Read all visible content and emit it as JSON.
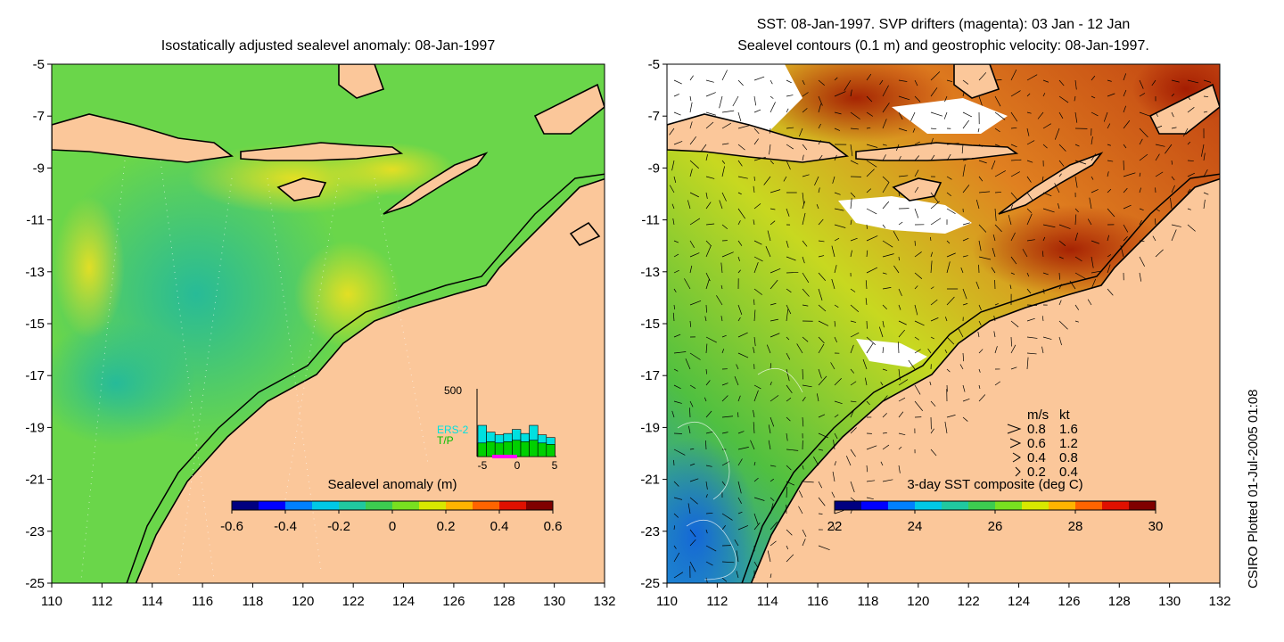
{
  "left_map": {
    "title": "Isostatically adjusted sealevel anomaly: 08-Jan-1997",
    "colorbar": {
      "label": "Sealevel anomaly (m)",
      "ticks": [
        "-0.6",
        "-0.4",
        "-0.2",
        "0",
        "0.2",
        "0.4",
        "0.6"
      ],
      "range": [
        -0.6,
        0.6
      ],
      "colors": [
        "#000080",
        "#0000ff",
        "#0080ff",
        "#00c8e6",
        "#20c8a0",
        "#3ccc50",
        "#78e020",
        "#d8e800",
        "#ffb400",
        "#ff6400",
        "#e01000",
        "#800000"
      ]
    },
    "inset": {
      "ymax_label": "500",
      "series": [
        {
          "name": "ERS-2",
          "color": "#00e0e0"
        },
        {
          "name": "T/P",
          "color": "#00d000"
        }
      ],
      "xticks": [
        "-5",
        "0",
        "5"
      ],
      "ers2_counts": [
        230,
        180,
        160,
        170,
        200,
        170,
        230,
        160,
        140
      ],
      "tp_counts": [
        100,
        110,
        100,
        110,
        120,
        110,
        120,
        100,
        90
      ]
    }
  },
  "right_map": {
    "title_line1": "SST: 08-Jan-1997. SVP drifters (magenta): 03 Jan - 12 Jan",
    "title_line2": "Sealevel contours (0.1 m) and geostrophic velocity: 08-Jan-1997.",
    "colorbar": {
      "label": "3-day SST composite (deg C)",
      "ticks": [
        "22",
        "24",
        "26",
        "28",
        "30"
      ],
      "range": [
        22,
        30
      ],
      "colors": [
        "#000080",
        "#0000ff",
        "#0080ff",
        "#00c8e6",
        "#20c8a0",
        "#3ccc50",
        "#78e020",
        "#d8e800",
        "#ffb400",
        "#ff6400",
        "#e01000",
        "#800000"
      ]
    },
    "velocity_legend": {
      "header_ms": "m/s",
      "header_kt": "kt",
      "rows": [
        {
          "ms": "0.8",
          "kt": "1.6"
        },
        {
          "ms": "0.6",
          "kt": "1.2"
        },
        {
          "ms": "0.4",
          "kt": "0.8"
        },
        {
          "ms": "0.2",
          "kt": "0.4"
        }
      ]
    }
  },
  "axes": {
    "x_ticks": [
      "110",
      "112",
      "114",
      "116",
      "118",
      "120",
      "122",
      "124",
      "126",
      "128",
      "130",
      "132"
    ],
    "y_ticks": [
      "-5",
      "-7",
      "-9",
      "-11",
      "-13",
      "-15",
      "-17",
      "-19",
      "-21",
      "-23",
      "-25"
    ],
    "lon_range": [
      110,
      132
    ],
    "lat_range": [
      -25,
      -5
    ]
  },
  "colors": {
    "land": "#fbc79a",
    "sst_warm": "#c85a10",
    "sla_ocean": "#3ccc50"
  },
  "credit": "CSIRO Plotted 01-Jul-2005 01:08"
}
